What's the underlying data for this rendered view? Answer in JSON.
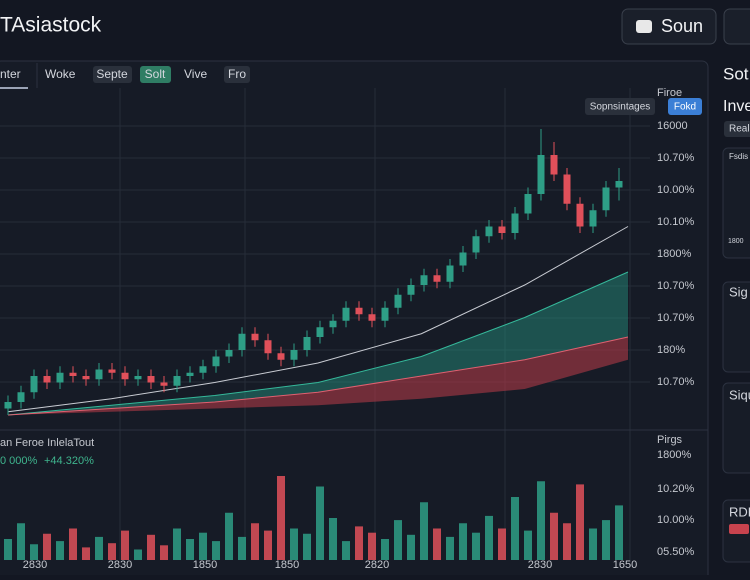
{
  "header": {
    "title": "TAsiastock",
    "button": "Soun"
  },
  "tabs": [
    "nter",
    "Woke",
    "Septe",
    "Solt",
    "Vive",
    "Fro"
  ],
  "chart": {
    "type": "candlestick",
    "badges": [
      "Sopnsintages",
      "Fokd"
    ],
    "axis_labels": [
      "Firoe",
      "16000",
      "10.70%",
      "10.00%",
      "10.10%",
      "1800%",
      "10.70%",
      "10.70%",
      "180%",
      "10.70%"
    ],
    "open": [
      2,
      4,
      7,
      12,
      10,
      13,
      12,
      11,
      14,
      13,
      11,
      12,
      10,
      9,
      12,
      13,
      15,
      18,
      20,
      25,
      23,
      19,
      17,
      20,
      24,
      27,
      29,
      33,
      31,
      29,
      33,
      37,
      40,
      43,
      41,
      46,
      50,
      55,
      58,
      56,
      62,
      68,
      80,
      74,
      65,
      58,
      63,
      70
    ],
    "high": [
      6,
      9,
      14,
      14,
      15,
      15,
      14,
      16,
      16,
      15,
      14,
      14,
      12,
      14,
      15,
      17,
      20,
      22,
      27,
      27,
      25,
      21,
      22,
      26,
      29,
      31,
      35,
      35,
      33,
      35,
      39,
      42,
      45,
      45,
      48,
      52,
      57,
      60,
      60,
      64,
      70,
      88,
      84,
      76,
      67,
      65,
      72,
      76
    ],
    "low": [
      0,
      2,
      5,
      8,
      8,
      10,
      9,
      9,
      11,
      9,
      9,
      8,
      7,
      7,
      10,
      11,
      13,
      16,
      18,
      21,
      17,
      15,
      15,
      18,
      22,
      25,
      27,
      29,
      27,
      27,
      31,
      35,
      38,
      39,
      39,
      44,
      48,
      53,
      54,
      54,
      60,
      66,
      72,
      63,
      56,
      56,
      61,
      66
    ],
    "close": [
      4,
      7,
      12,
      10,
      13,
      12,
      11,
      14,
      13,
      11,
      12,
      10,
      9,
      12,
      13,
      15,
      18,
      20,
      25,
      23,
      19,
      17,
      20,
      24,
      27,
      29,
      33,
      31,
      29,
      33,
      37,
      40,
      43,
      41,
      46,
      50,
      55,
      58,
      56,
      62,
      68,
      80,
      74,
      65,
      58,
      63,
      70,
      72
    ],
    "ma": [
      1,
      5,
      10,
      16,
      25,
      40,
      58
    ],
    "band_upper": [
      0,
      3,
      6,
      10,
      18,
      30,
      44
    ],
    "band_mid": [
      0,
      2,
      4,
      7,
      12,
      17,
      24
    ],
    "band_lower": [
      0,
      1,
      2,
      3,
      5,
      8,
      17
    ]
  },
  "volume": {
    "title": "an Feroe InlelaTout",
    "change": "0 000%",
    "change_pct": "+44.320%",
    "axis_labels": [
      "Pirgs",
      "1800%",
      "10.20%",
      "10.00%",
      "05.50%"
    ],
    "values": [
      20,
      35,
      15,
      25,
      18,
      30,
      12,
      22,
      16,
      28,
      10,
      24,
      14,
      30,
      20,
      26,
      18,
      45,
      22,
      35,
      28,
      80,
      30,
      25,
      70,
      40,
      18,
      32,
      26,
      20,
      38,
      24,
      55,
      30,
      22,
      35,
      26,
      42,
      30,
      60,
      28,
      75,
      45,
      35,
      72,
      30,
      38,
      52
    ]
  },
  "x_labels": [
    "2830",
    "2830",
    "1850",
    "1850",
    "2820",
    "2830",
    "1650"
  ],
  "sidebar": {
    "title": "Sot",
    "subtitle": "Inve",
    "badge": "Real",
    "card1_title": "Fsdis",
    "card1_value": "1800",
    "card2": "Sig",
    "card3": "Siqu",
    "card4": "RDL"
  }
}
